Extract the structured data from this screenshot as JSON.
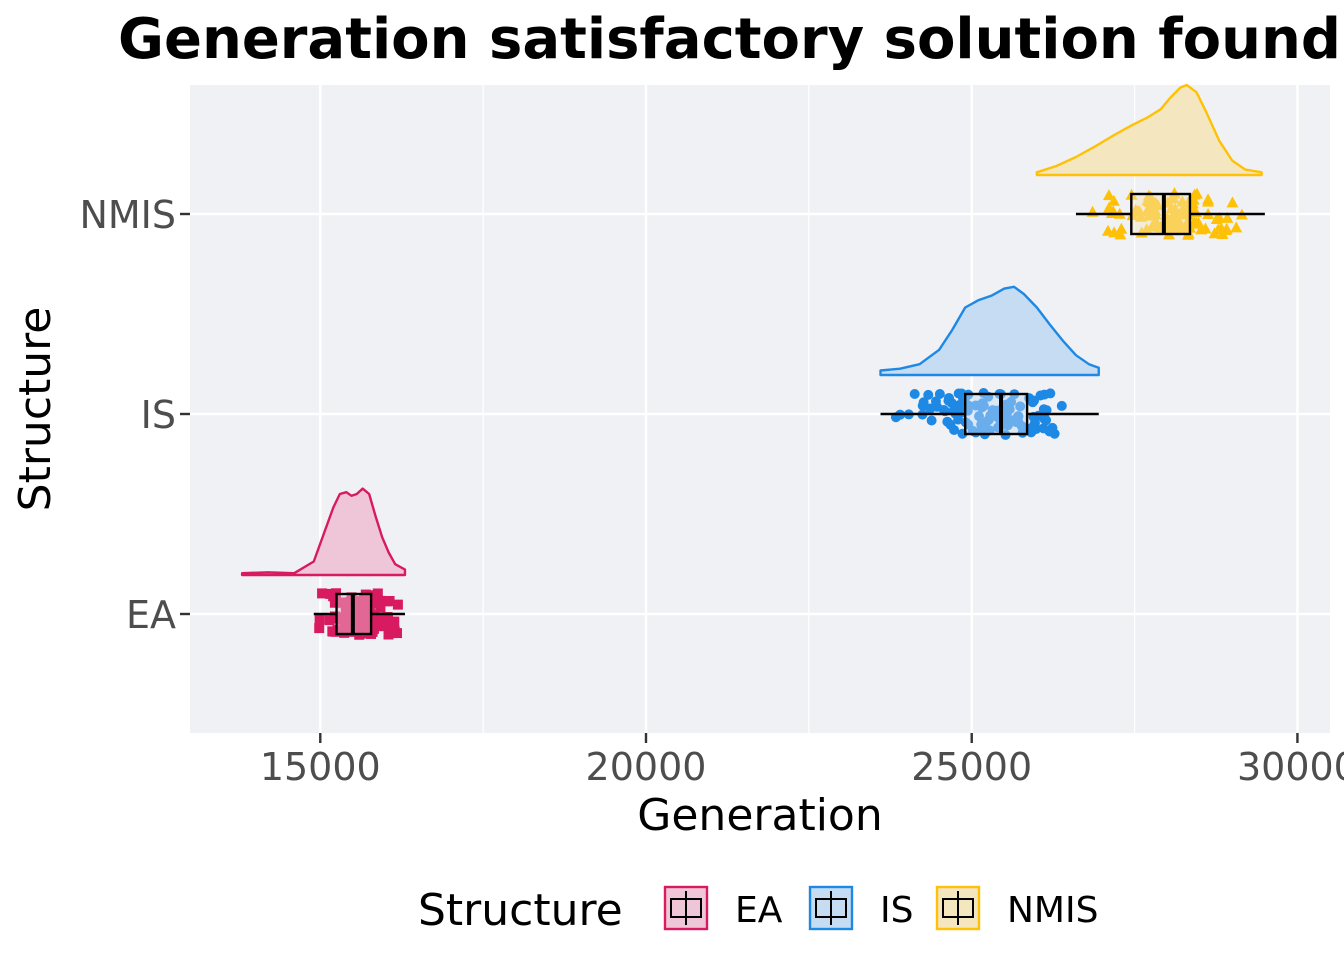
{
  "chart_data": {
    "type": "raincloud",
    "title": "Generation satisfactory solution found",
    "xlabel": "Generation",
    "ylabel": "Structure",
    "xlim": [
      13000,
      30500
    ],
    "x_ticks": [
      15000,
      20000,
      25000,
      30000
    ],
    "x_tick_labels": [
      "15000",
      "20000",
      "25000",
      "30000"
    ],
    "categories": [
      "EA",
      "IS",
      "NMIS"
    ],
    "grid": true,
    "background": "#f0f1f5",
    "legend": {
      "title": "Structure",
      "position": "bottom",
      "entries": [
        "EA",
        "IS",
        "NMIS"
      ]
    },
    "series": [
      {
        "name": "EA",
        "color": "#d81b60",
        "fill": "#efc6d8",
        "marker": "square",
        "box": {
          "whisker_low": 14900,
          "q1": 15250,
          "median": 15500,
          "q3": 15780,
          "whisker_high": 16300
        },
        "density": {
          "x": [
            13800,
            14200,
            14600,
            14900,
            15050,
            15200,
            15300,
            15400,
            15480,
            15560,
            15650,
            15750,
            15850,
            15950,
            16050,
            16150,
            16300
          ],
          "y": [
            0.02,
            0.03,
            0.02,
            0.15,
            0.45,
            0.75,
            0.9,
            0.92,
            0.88,
            0.9,
            0.96,
            0.9,
            0.65,
            0.42,
            0.25,
            0.12,
            0.06
          ]
        }
      },
      {
        "name": "IS",
        "color": "#1e88e5",
        "fill": "#c6dcf3",
        "marker": "circle",
        "box": {
          "whisker_low": 23600,
          "q1": 24900,
          "median": 25450,
          "q3": 25850,
          "whisker_high": 26950
        },
        "density": {
          "x": [
            23600,
            23900,
            24200,
            24500,
            24700,
            24900,
            25100,
            25300,
            25500,
            25650,
            25800,
            26000,
            26200,
            26400,
            26600,
            26800,
            26950
          ],
          "y": [
            0.05,
            0.07,
            0.12,
            0.28,
            0.5,
            0.75,
            0.83,
            0.88,
            0.96,
            0.98,
            0.9,
            0.75,
            0.56,
            0.38,
            0.22,
            0.12,
            0.08
          ]
        }
      },
      {
        "name": "NMIS",
        "color": "#ffc107",
        "fill": "#f4e6bf",
        "marker": "triangle",
        "box": {
          "whisker_low": 26600,
          "q1": 27450,
          "median": 27950,
          "q3": 28350,
          "whisker_high": 29500
        },
        "density": {
          "x": [
            26000,
            26300,
            26600,
            26900,
            27200,
            27450,
            27700,
            27900,
            28050,
            28200,
            28300,
            28450,
            28600,
            28800,
            29000,
            29200,
            29450
          ],
          "y": [
            0.03,
            0.1,
            0.2,
            0.32,
            0.45,
            0.55,
            0.64,
            0.73,
            0.86,
            0.97,
            1.0,
            0.92,
            0.7,
            0.38,
            0.16,
            0.06,
            0.03
          ]
        }
      }
    ]
  }
}
